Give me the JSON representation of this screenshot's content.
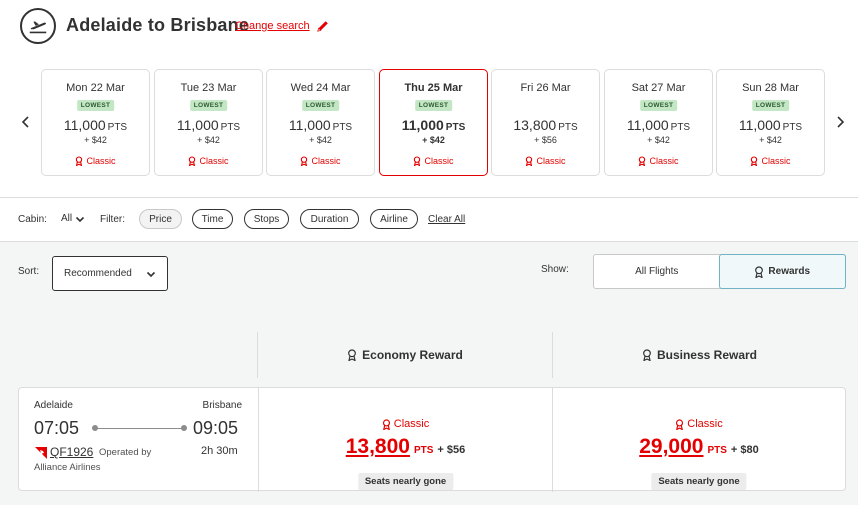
{
  "header": {
    "title": "Adelaide to Brisbane",
    "change_search": "Change search"
  },
  "dates": [
    {
      "date": "Mon 22 Mar",
      "badge": "LOWEST",
      "points": "11,000",
      "unit": "PTS",
      "tax": "+ $42",
      "fare_type": "Classic",
      "selected": false
    },
    {
      "date": "Tue 23 Mar",
      "badge": "LOWEST",
      "points": "11,000",
      "unit": "PTS",
      "tax": "+ $42",
      "fare_type": "Classic",
      "selected": false
    },
    {
      "date": "Wed 24 Mar",
      "badge": "LOWEST",
      "points": "11,000",
      "unit": "PTS",
      "tax": "+ $42",
      "fare_type": "Classic",
      "selected": false
    },
    {
      "date": "Thu 25 Mar",
      "badge": "LOWEST",
      "points": "11,000",
      "unit": "PTS",
      "tax": "+ $42",
      "fare_type": "Classic",
      "selected": true
    },
    {
      "date": "Fri 26 Mar",
      "badge": "",
      "points": "13,800",
      "unit": "PTS",
      "tax": "+ $56",
      "fare_type": "Classic",
      "selected": false
    },
    {
      "date": "Sat 27 Mar",
      "badge": "LOWEST",
      "points": "11,000",
      "unit": "PTS",
      "tax": "+ $42",
      "fare_type": "Classic",
      "selected": false
    },
    {
      "date": "Sun 28 Mar",
      "badge": "LOWEST",
      "points": "11,000",
      "unit": "PTS",
      "tax": "+ $42",
      "fare_type": "Classic",
      "selected": false
    }
  ],
  "filters": {
    "cabin_label": "Cabin:",
    "cabin_value": "All",
    "filter_label": "Filter:",
    "pills": [
      "Price",
      "Time",
      "Stops",
      "Duration",
      "Airline"
    ],
    "clear_all": "Clear All"
  },
  "sort": {
    "label": "Sort:",
    "value": "Recommended"
  },
  "show": {
    "label": "Show:",
    "options": [
      "All Flights",
      "Rewards"
    ],
    "active": "Rewards"
  },
  "columns": {
    "economy": "Economy Reward",
    "business": "Business Reward"
  },
  "flight": {
    "origin": "Adelaide",
    "destination": "Brisbane",
    "depart": "07:05",
    "arrive": "09:05",
    "number": "QF1926",
    "operated_by_1": "Operated by",
    "operated_by_2": "Alliance Airlines",
    "duration": "2h 30m",
    "economy": {
      "fare_type": "Classic",
      "points": "13,800",
      "unit": "PTS",
      "tax": "+ $56",
      "note": "Seats nearly gone"
    },
    "business": {
      "fare_type": "Classic",
      "points": "29,000",
      "unit": "PTS",
      "tax": "+ $80",
      "note": "Seats nearly gone"
    }
  },
  "colors": {
    "brand_red": "#e40000",
    "lowest_badge": "#c3e6c5",
    "text": "#323232"
  }
}
